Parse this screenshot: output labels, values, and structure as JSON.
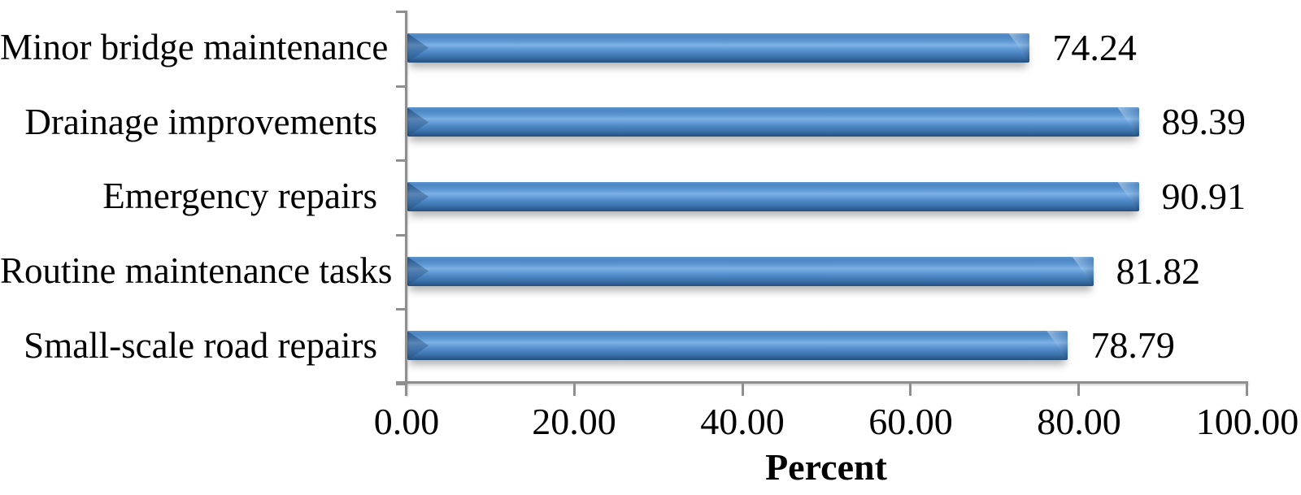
{
  "chart_data": {
    "type": "bar",
    "orientation": "horizontal",
    "title": "",
    "categories": [
      "Minor bridge maintenance",
      "Drainage improvements",
      "Emergency repairs",
      "Routine maintenance tasks",
      "Small-scale road repairs"
    ],
    "values": [
      74.24,
      89.39,
      90.91,
      81.82,
      78.79
    ],
    "value_labels": [
      "74.24",
      "89.39",
      "90.91",
      "81.82",
      "78.79"
    ],
    "xlabel": "Percent",
    "ylabel": "",
    "xticks": [
      "0.00",
      "20.00",
      "40.00",
      "60.00",
      "80.00",
      "100.00"
    ],
    "xlim": [
      0,
      100
    ],
    "grid": false,
    "legend": null,
    "colors": {
      "bar_main": "#4b85c3",
      "bar_highlight": "#7db1e6",
      "bar_dark": "#284f7c",
      "axis": "#8f8f8f",
      "text": "#000000",
      "background": "#ffffff"
    }
  }
}
